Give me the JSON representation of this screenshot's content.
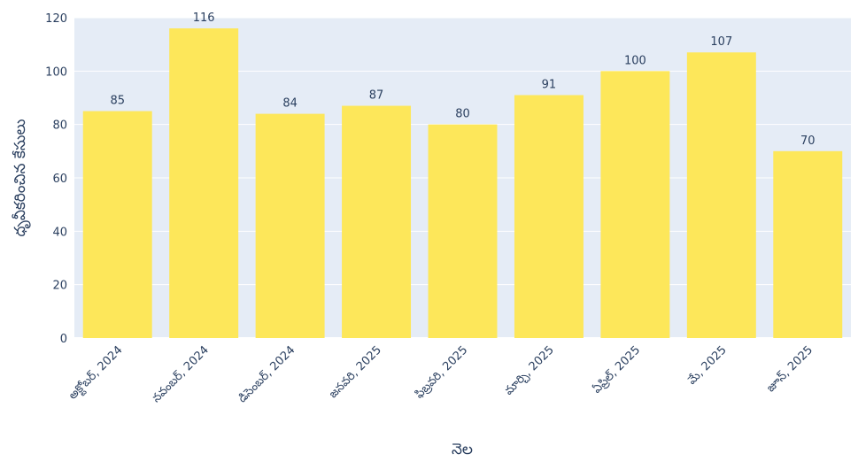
{
  "chart_data": {
    "type": "bar",
    "title": "",
    "xlabel": "నెల",
    "ylabel": "ధృవీకరించిన కేసులు",
    "categories": [
      "అక్టోబర్, 2024",
      "నవంబర్, 2024",
      "డిసెంబర్, 2024",
      "జనవరి, 2025",
      "ఫిబ్రవరి, 2025",
      "మార్చి, 2025",
      "ఏప్రిల్, 2025",
      "మే, 2025",
      "జూన్, 2025"
    ],
    "values": [
      85,
      116,
      84,
      87,
      80,
      91,
      100,
      107,
      70
    ],
    "ylim": [
      0,
      120
    ],
    "yticks": [
      0,
      20,
      40,
      60,
      80,
      100,
      120
    ],
    "grid": true,
    "legend": "none",
    "colors": {
      "bar": "#fde75a",
      "plot_bg": "#e5ecf6",
      "grid": "#ffffff",
      "text": "#2a3f5f"
    }
  }
}
